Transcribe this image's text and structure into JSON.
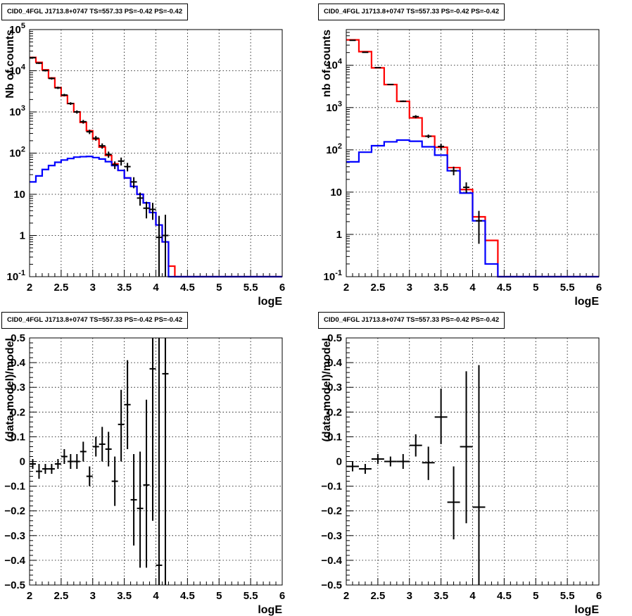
{
  "panel_title": "CID0_4FGL J1713.8+0747 TS=557.33 PS=-0.42 PS=-0.42",
  "colors": {
    "data": "#000000",
    "total_model": "#ff0000",
    "source_model": "#0000ff",
    "grid": "#000000"
  },
  "chart_data": [
    {
      "type": "step-histogram",
      "title": "CID0_4FGL J1713.8+0747 TS=557.33 PS=-0.42 PS=-0.42",
      "xlabel": "logE",
      "ylabel": "Nb of counts",
      "xlim": [
        2,
        6
      ],
      "ylim": [
        0.1,
        100000
      ],
      "yscale": "log",
      "grid": true,
      "x_ticks": [
        "2",
        "2.5",
        "3",
        "3.5",
        "4",
        "4.5",
        "5",
        "5.5",
        "6"
      ],
      "y_ticks": [
        "10^-1",
        "1",
        "10",
        "10^2",
        "10^3",
        "10^4",
        "10^5"
      ],
      "bin_edges": [
        2.0,
        2.1,
        2.2,
        2.3,
        2.4,
        2.5,
        2.6,
        2.7,
        2.8,
        2.9,
        3.0,
        3.1,
        3.2,
        3.3,
        3.4,
        3.5,
        3.6,
        3.7,
        3.8,
        3.9,
        4.0,
        4.1,
        4.2,
        4.3,
        4.4,
        4.5,
        4.6,
        4.7,
        4.8,
        4.9,
        5.0,
        5.1,
        5.2,
        5.3,
        5.4,
        5.5,
        5.6,
        5.7,
        5.8,
        5.9,
        6.0
      ],
      "series": [
        {
          "name": "total model",
          "color": "#ff0000",
          "values": [
            21000,
            16000,
            10500,
            6700,
            3900,
            2500,
            1600,
            1000,
            560,
            350,
            220,
            140,
            88,
            55,
            38,
            25,
            15.5,
            10,
            6.2,
            3.6,
            1.8,
            0.7,
            0.18,
            0.1,
            0.1,
            0.1,
            0.1,
            0.1,
            0.1,
            0.1,
            0.1,
            0.1,
            0.1,
            0.1,
            0.1,
            0.1,
            0.1,
            0.1,
            0.1,
            0.1
          ]
        },
        {
          "name": "source model",
          "color": "#0000ff",
          "values": [
            20,
            28,
            40,
            50,
            60,
            68,
            74,
            80,
            82,
            83,
            78,
            72,
            62,
            50,
            38,
            25,
            15.5,
            10,
            6.2,
            3.6,
            1.8,
            0.7,
            0.1,
            0.1,
            0.1,
            0.1,
            0.1,
            0.1,
            0.1,
            0.1,
            0.1,
            0.1,
            0.1,
            0.1,
            0.1,
            0.1,
            0.1,
            0.1,
            0.1,
            0.1
          ]
        }
      ],
      "data_points": {
        "name": "data",
        "color": "#000000",
        "x": [
          2.05,
          2.15,
          2.25,
          2.35,
          2.45,
          2.55,
          2.65,
          2.75,
          2.85,
          2.95,
          3.05,
          3.15,
          3.25,
          3.35,
          3.45,
          3.55,
          3.65,
          3.75,
          3.85,
          3.95,
          4.05,
          4.15
        ],
        "y": [
          20800,
          15300,
          10100,
          6500,
          3850,
          2570,
          1600,
          1000,
          580,
          330,
          230,
          150,
          93,
          52,
          64,
          47,
          20,
          8.1,
          4.6,
          4.3,
          0.9,
          1.0
        ],
        "y_low": [
          19800,
          14600,
          9600,
          6100,
          3600,
          2400,
          1480,
          910,
          520,
          290,
          200,
          128,
          77,
          41,
          50,
          36,
          14,
          5.3,
          2.6,
          2.4,
          0.1,
          0.1
        ],
        "y_high": [
          21800,
          16000,
          10600,
          6900,
          4100,
          2750,
          1720,
          1090,
          640,
          370,
          260,
          172,
          109,
          63,
          78,
          58,
          26,
          11,
          6.6,
          6.2,
          3.0,
          3.2
        ]
      }
    },
    {
      "type": "step-histogram",
      "title": "CID0_4FGL J1713.8+0747 TS=557.33 PS=-0.42 PS=-0.42",
      "xlabel": "logE",
      "ylabel": "nb of counts",
      "xlim": [
        2,
        6
      ],
      "ylim": [
        0.1,
        70000
      ],
      "yscale": "log",
      "grid": true,
      "x_ticks": [
        "2",
        "2.5",
        "3",
        "3.5",
        "4",
        "4.5",
        "5",
        "5.5",
        "6"
      ],
      "y_ticks": [
        "10^-1",
        "1",
        "10",
        "10^2",
        "10^3",
        "10^4"
      ],
      "bin_edges": [
        2.0,
        2.2,
        2.4,
        2.6,
        2.8,
        3.0,
        3.2,
        3.4,
        3.6,
        3.8,
        4.0,
        4.2,
        4.4,
        4.6,
        4.8,
        5.0,
        5.2,
        5.4,
        5.6,
        5.8,
        6.0
      ],
      "series": [
        {
          "name": "total model",
          "color": "#ff0000",
          "values": [
            40000,
            21000,
            8700,
            3500,
            1400,
            570,
            210,
            115,
            38,
            11.5,
            2.6,
            0.72,
            0.1,
            0.1,
            0.1,
            0.1,
            0.1,
            0.1,
            0.1,
            0.1
          ]
        },
        {
          "name": "source model",
          "color": "#0000ff",
          "values": [
            52,
            88,
            125,
            155,
            170,
            160,
            118,
            75,
            32,
            9.5,
            2.1,
            0.2,
            0.1,
            0.1,
            0.1,
            0.1,
            0.1,
            0.1,
            0.1,
            0.1
          ]
        }
      ],
      "data_points": {
        "name": "data",
        "color": "#000000",
        "x": [
          2.1,
          2.3,
          2.5,
          2.7,
          2.9,
          3.1,
          3.3,
          3.5,
          3.7,
          3.9,
          4.1
        ],
        "y": [
          39000,
          20300,
          8800,
          3520,
          1410,
          610,
          210,
          120,
          32,
          13,
          2.1
        ],
        "y_low": [
          38000,
          19800,
          8600,
          3400,
          1350,
          560,
          190,
          100,
          25,
          9.5,
          0.6
        ],
        "y_high": [
          40000,
          20800,
          9000,
          3640,
          1470,
          660,
          230,
          140,
          40,
          17,
          3.6
        ]
      }
    },
    {
      "type": "scatter-errorbars",
      "title": "CID0_4FGL J1713.8+0747 TS=557.33 PS=-0.42 PS=-0.42",
      "xlabel": "logE",
      "ylabel": "(data-model)/model",
      "xlim": [
        2,
        6
      ],
      "ylim": [
        -0.5,
        0.5
      ],
      "grid": true,
      "x_ticks": [
        "2",
        "2.5",
        "3",
        "3.5",
        "4",
        "4.5",
        "5",
        "5.5",
        "6"
      ],
      "y_ticks": [
        "−0.5",
        "−0.4",
        "−0.3",
        "−0.2",
        "−0.1",
        "0",
        "0.1",
        "0.2",
        "0.3",
        "0.4",
        "0.5"
      ],
      "points": {
        "x": [
          2.05,
          2.15,
          2.25,
          2.35,
          2.45,
          2.55,
          2.65,
          2.75,
          2.85,
          2.95,
          3.05,
          3.15,
          3.25,
          3.35,
          3.45,
          3.55,
          3.65,
          3.75,
          3.85,
          3.95,
          4.05,
          4.15
        ],
        "x_err": 0.05,
        "y": [
          -0.01,
          -0.04,
          -0.03,
          -0.03,
          -0.01,
          0.02,
          0.0,
          0.0,
          0.04,
          -0.06,
          0.06,
          0.07,
          0.05,
          -0.08,
          0.15,
          0.23,
          -0.155,
          -0.19,
          -0.095,
          0.375,
          -0.42,
          0.355
        ],
        "y_low": [
          -0.03,
          -0.07,
          -0.05,
          -0.05,
          -0.03,
          -0.01,
          -0.03,
          -0.03,
          0.0,
          -0.1,
          0.02,
          0.0,
          -0.02,
          -0.18,
          0.0,
          0.05,
          -0.34,
          -0.43,
          -0.43,
          -0.24,
          -0.5,
          -0.5
        ],
        "y_high": [
          0.01,
          -0.01,
          -0.01,
          -0.01,
          0.01,
          0.05,
          0.03,
          0.03,
          0.08,
          -0.02,
          0.1,
          0.14,
          0.12,
          0.02,
          0.29,
          0.41,
          0.03,
          0.04,
          0.25,
          0.5,
          0.5,
          0.5
        ]
      }
    },
    {
      "type": "scatter-errorbars",
      "title": "CID0_4FGL J1713.8+0747 TS=557.33 PS=-0.42 PS=-0.42",
      "xlabel": "logE",
      "ylabel": "(data-model)/model",
      "xlim": [
        2,
        6
      ],
      "ylim": [
        -0.5,
        0.5
      ],
      "grid": true,
      "x_ticks": [
        "2",
        "2.5",
        "3",
        "3.5",
        "4",
        "4.5",
        "5",
        "5.5",
        "6"
      ],
      "y_ticks": [
        "−0.5",
        "−0.4",
        "−0.3",
        "−0.2",
        "−0.1",
        "0",
        "0.1",
        "0.2",
        "0.3",
        "0.4",
        "0.5"
      ],
      "points": {
        "x": [
          2.1,
          2.3,
          2.5,
          2.7,
          2.9,
          3.1,
          3.3,
          3.5,
          3.7,
          3.9,
          4.1
        ],
        "x_err": 0.1,
        "y": [
          -0.02,
          -0.03,
          0.01,
          0.0,
          0.0,
          0.065,
          -0.005,
          0.18,
          -0.165,
          0.06,
          -0.185
        ],
        "y_low": [
          -0.04,
          -0.05,
          -0.01,
          -0.02,
          -0.03,
          0.02,
          -0.075,
          0.07,
          -0.315,
          -0.25,
          -0.5
        ],
        "y_high": [
          0.0,
          -0.01,
          0.03,
          0.02,
          0.03,
          0.11,
          0.06,
          0.295,
          -0.02,
          0.365,
          0.39
        ]
      }
    }
  ]
}
